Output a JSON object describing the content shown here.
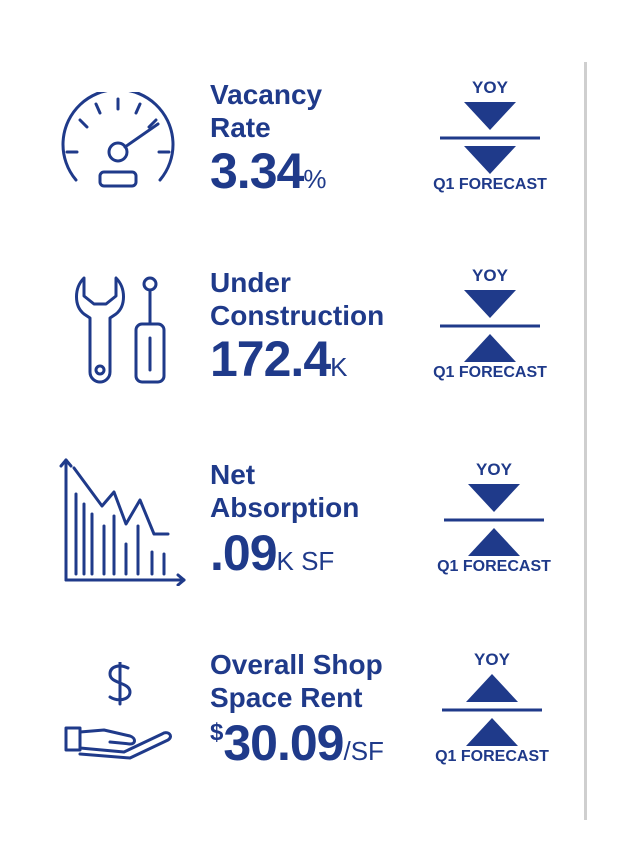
{
  "colors": {
    "brand": "#1f3a8a",
    "divider": "#cfcfcf"
  },
  "metrics": [
    {
      "icon": "speedometer-icon",
      "label_line1": "Vacancy",
      "label_line2": "Rate",
      "prefix": "",
      "value": "3.34",
      "unit": "%",
      "yoy_label": "YOY",
      "yoy_trend": "down",
      "forecast_label": "Q1 FORECAST",
      "forecast_trend": "down"
    },
    {
      "icon": "wrench-screwdriver-icon",
      "label_line1": "Under",
      "label_line2": "Construction",
      "prefix": "",
      "value": "172.4",
      "unit": "K",
      "yoy_label": "YOY",
      "yoy_trend": "down",
      "forecast_label": "Q1 FORECAST",
      "forecast_trend": "up"
    },
    {
      "icon": "declining-bar-chart-icon",
      "label_line1": "Net",
      "label_line2": "Absorption",
      "prefix": "",
      "value": ".09",
      "unit": "K SF",
      "yoy_label": "YOY",
      "yoy_trend": "down",
      "forecast_label": "Q1 FORECAST",
      "forecast_trend": "up"
    },
    {
      "icon": "hand-dollar-icon",
      "label_line1": "Overall Shop",
      "label_line2": "Space Rent",
      "prefix": "$",
      "value": "30.09",
      "unit": "/SF",
      "yoy_label": "YOY",
      "yoy_trend": "up",
      "forecast_label": "Q1 FORECAST",
      "forecast_trend": "up"
    }
  ]
}
